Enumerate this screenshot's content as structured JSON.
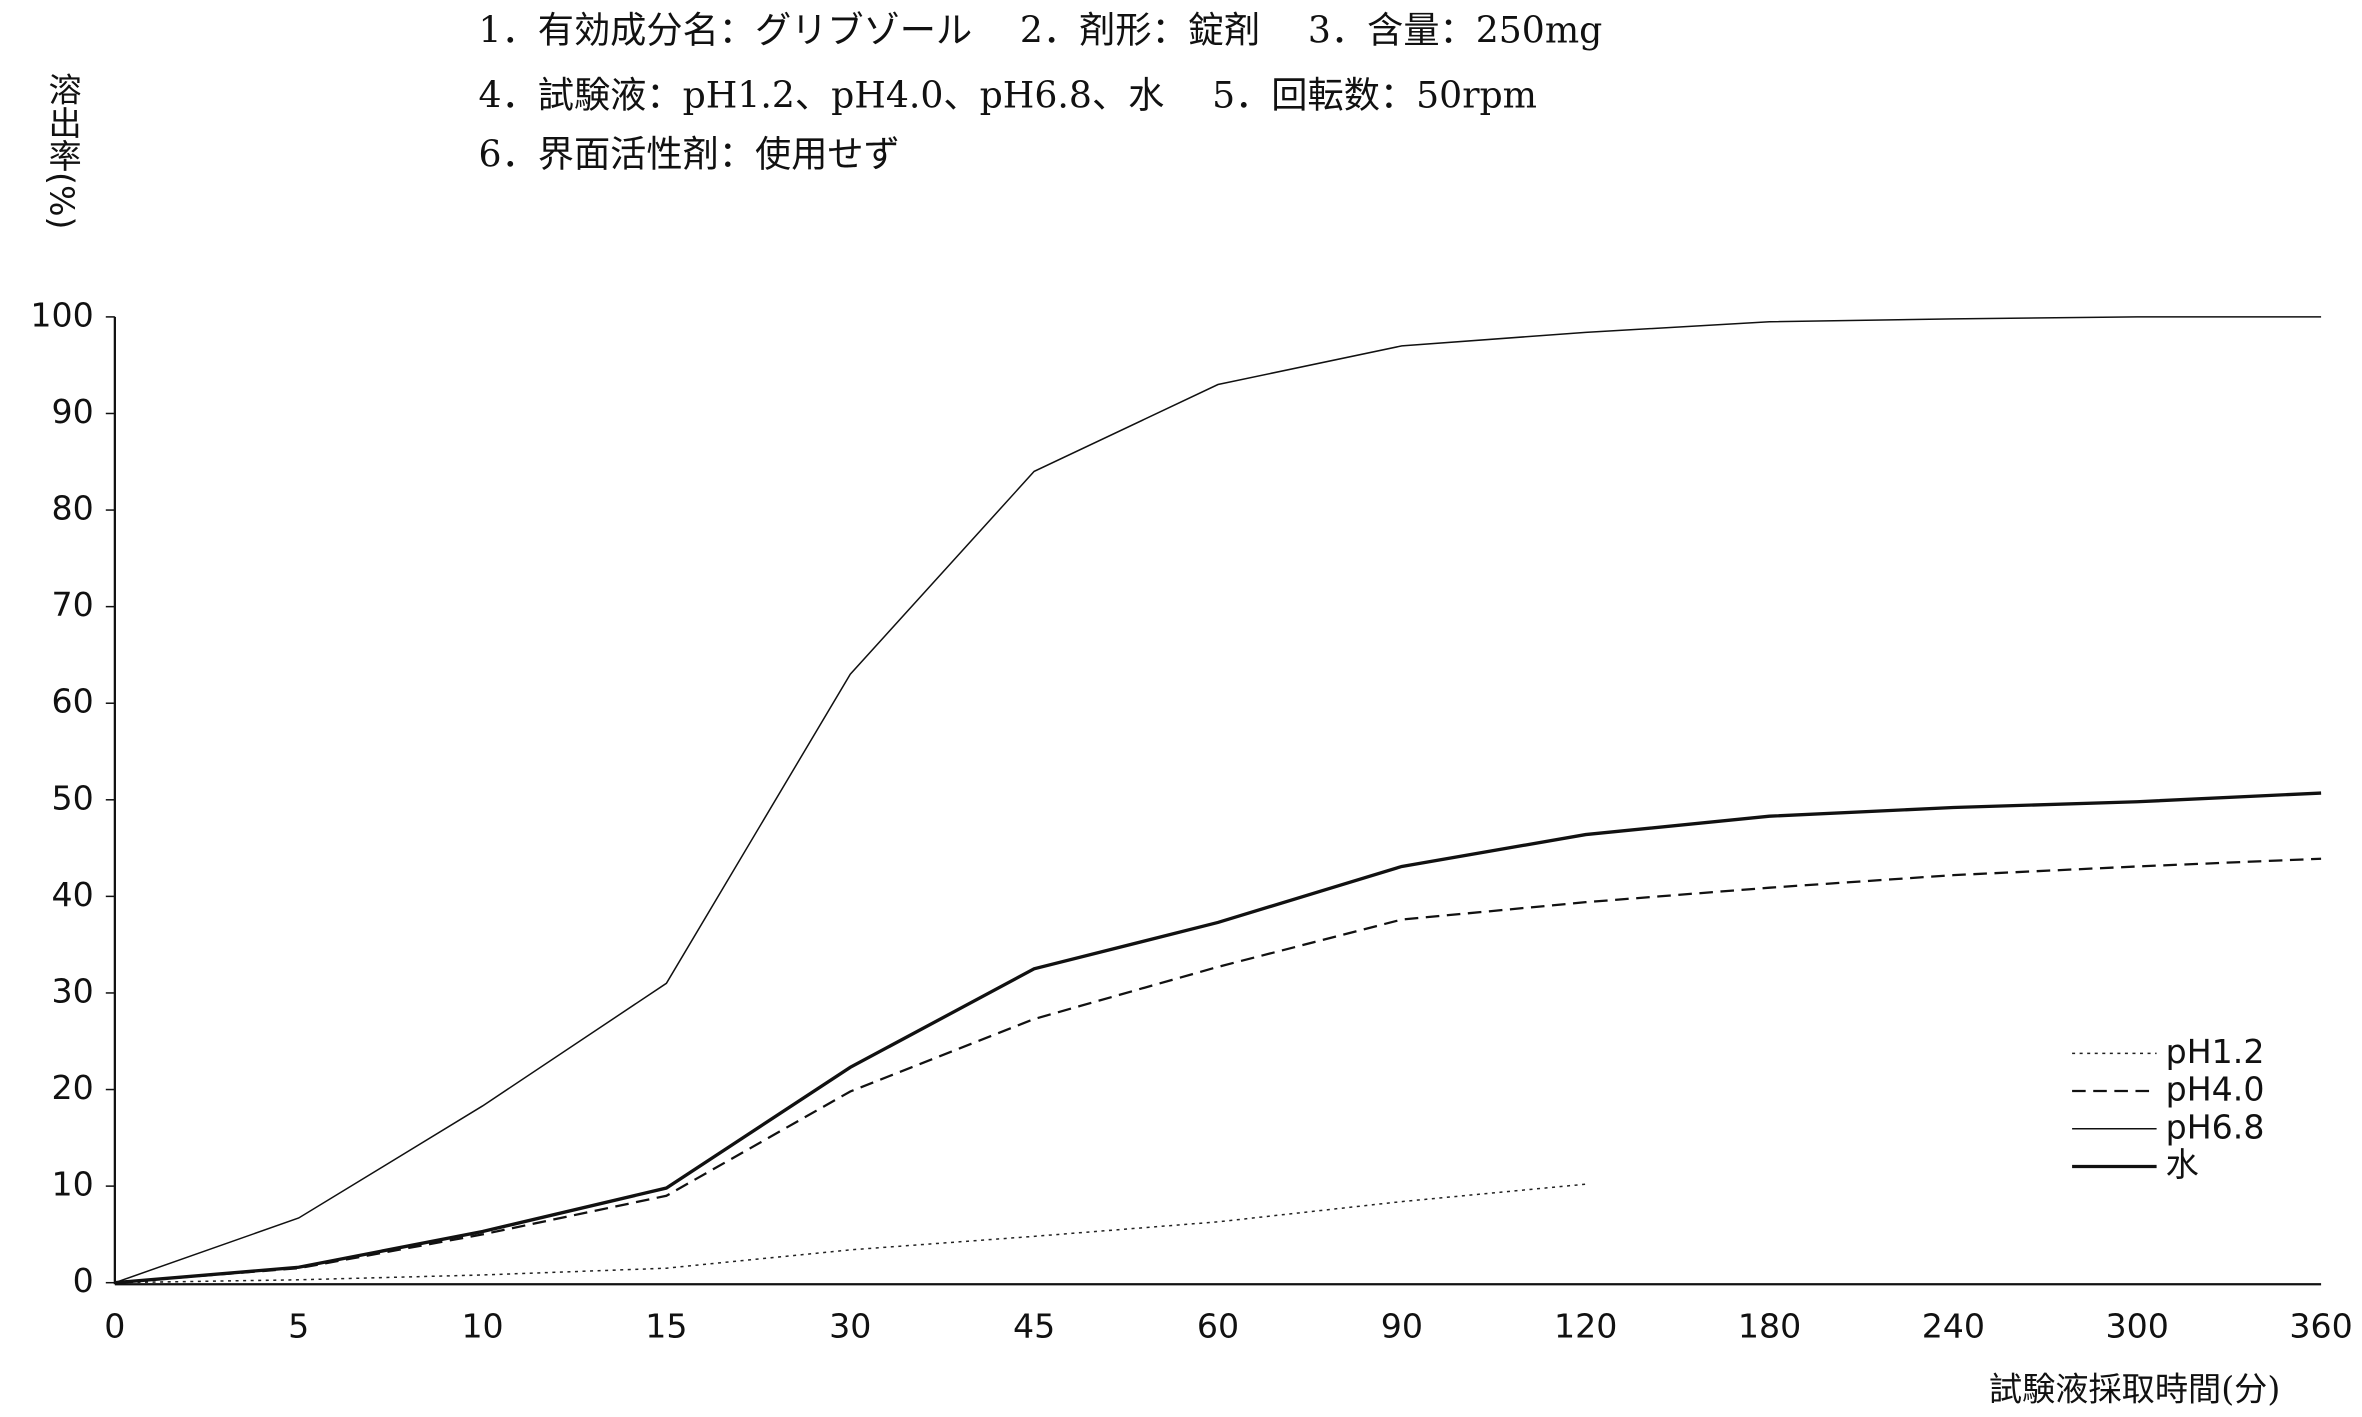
{
  "chart_data": {
    "type": "line",
    "notes": [
      "1．有効成分名：グリブゾール　 2．剤形：錠剤　 3．含量：250mg",
      "4．試験液：pH1.2、pH4.0、pH6.8、水　 5．回転数：50rpm",
      "6．界面活性剤：使用せず"
    ],
    "y_label": "溶出率(%)",
    "x_label": "試験液採取時間(分)",
    "categories": [
      "0",
      "5",
      "10",
      "15",
      "30",
      "45",
      "60",
      "90",
      "120",
      "180",
      "240",
      "300",
      "360"
    ],
    "series": [
      {
        "name": "pH1.2",
        "color": "#222222",
        "dash": "dotted",
        "width": 1,
        "values": [
          0,
          0.3,
          0.8,
          1.5,
          3.4,
          4.8,
          6.3,
          8.4,
          10.2,
          null,
          null,
          null,
          null
        ]
      },
      {
        "name": "pH4.0",
        "color": "#111111",
        "dash": "dashed",
        "width": 1.5,
        "values": [
          0,
          1.5,
          5,
          9,
          19.8,
          27.3,
          32.7,
          37.6,
          39.4,
          40.9,
          42.2,
          43.1,
          43.9
        ]
      },
      {
        "name": "pH6.8",
        "color": "#111111",
        "dash": "solid",
        "width": 1,
        "values": [
          0,
          6.7,
          18.3,
          31,
          63,
          84,
          93,
          97,
          98.4,
          99.5,
          99.8,
          100,
          100
        ]
      },
      {
        "name": "水",
        "color": "#111111",
        "dash": "solid",
        "width": 2.2,
        "values": [
          0,
          1.6,
          5.3,
          9.8,
          22.3,
          32.5,
          37.3,
          43.1,
          46.4,
          48.3,
          49.2,
          49.8,
          50.7
        ]
      }
    ],
    "ylim": [
      0,
      100
    ],
    "yticks": [
      0,
      10,
      20,
      30,
      40,
      50,
      60,
      70,
      80,
      90,
      100
    ],
    "legend": "lower right",
    "grid": false
  }
}
